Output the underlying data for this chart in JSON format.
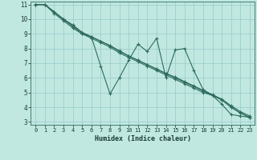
{
  "xlabel": "Humidex (Indice chaleur)",
  "background_color": "#c0e8e0",
  "grid_color": "#9ecece",
  "line_color": "#2e6b5e",
  "xlim": [
    -0.5,
    23.5
  ],
  "ylim": [
    2.8,
    11.2
  ],
  "yticks": [
    3,
    4,
    5,
    6,
    7,
    8,
    9,
    10,
    11
  ],
  "xticks": [
    0,
    1,
    2,
    3,
    4,
    5,
    6,
    7,
    8,
    9,
    10,
    11,
    12,
    13,
    14,
    15,
    16,
    17,
    18,
    19,
    20,
    21,
    22,
    23
  ],
  "series": [
    [
      11,
      11,
      10.5,
      10.0,
      9.5,
      9.0,
      8.8,
      6.8,
      4.9,
      6.0,
      7.2,
      8.3,
      7.8,
      8.7,
      6.0,
      7.9,
      8.0,
      6.5,
      5.2,
      4.8,
      4.2,
      3.5,
      3.4,
      3.3
    ],
    [
      11,
      11,
      10.5,
      10.0,
      9.6,
      9.1,
      8.8,
      8.5,
      8.2,
      7.85,
      7.5,
      7.2,
      6.9,
      6.6,
      6.3,
      6.05,
      5.75,
      5.45,
      5.15,
      4.85,
      4.55,
      4.1,
      3.7,
      3.4
    ],
    [
      11,
      11,
      10.5,
      10.0,
      9.6,
      9.1,
      8.8,
      8.5,
      8.2,
      7.8,
      7.5,
      7.2,
      6.9,
      6.6,
      6.3,
      6.0,
      5.7,
      5.4,
      5.1,
      4.8,
      4.5,
      4.0,
      3.6,
      3.3
    ],
    [
      11,
      11,
      10.4,
      9.9,
      9.4,
      9.0,
      8.7,
      8.4,
      8.1,
      7.7,
      7.4,
      7.1,
      6.8,
      6.5,
      6.2,
      5.9,
      5.6,
      5.3,
      5.0,
      4.8,
      4.5,
      4.0,
      3.6,
      3.3
    ]
  ]
}
